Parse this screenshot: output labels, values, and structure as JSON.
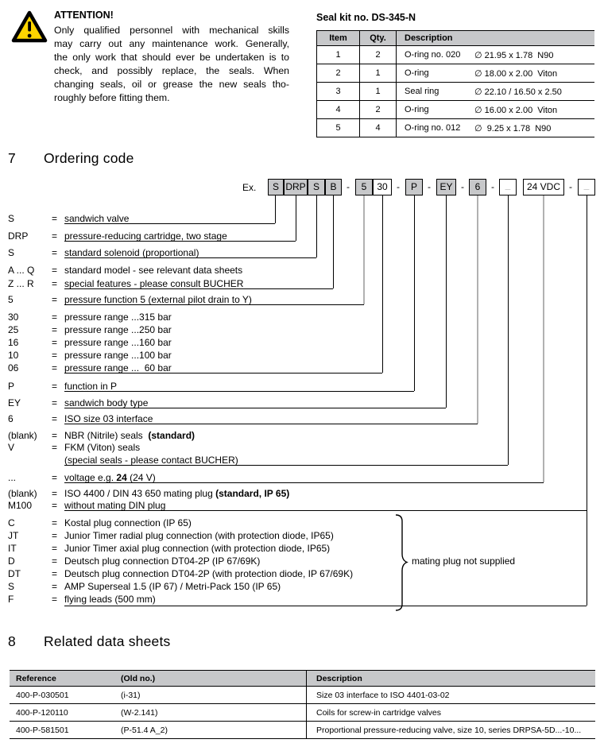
{
  "colors": {
    "table_header_bg": "#c7c8ca",
    "box_gray": "#c7c8ca",
    "leader_gray": "#b1b1b1",
    "warning_yellow": "#ffd500"
  },
  "attention": {
    "title": "ATTENTION!",
    "body_lines": [
      "Only qualified personnel with mechanical skills",
      "may carry out any maintenance work. Generally,",
      "the only work that should ever be undertaken is to",
      "check, and possibly replace, the seals. When",
      "changing seals, oil or grease the new seals tho-",
      "roughly before fitting them."
    ]
  },
  "seal_kit": {
    "title": "Seal kit no. DS-345-N",
    "columns": [
      "Item",
      "Qty.",
      "Description"
    ],
    "rows": [
      {
        "item": "1",
        "qty": "2",
        "name": "O-ring no. 020",
        "size": "∅ 21.95 x 1.78  N90"
      },
      {
        "item": "2",
        "qty": "1",
        "name": "O-ring",
        "size": "∅ 18.00 x 2.00  Viton"
      },
      {
        "item": "3",
        "qty": "1",
        "name": "Seal ring",
        "size": "∅ 22.10 / 16.50 x 2.50"
      },
      {
        "item": "4",
        "qty": "2",
        "name": "O-ring",
        "size": "∅ 16.00 x 2.00  Viton"
      },
      {
        "item": "5",
        "qty": "4",
        "name": "O-ring no. 012",
        "size": "∅  9.25 x 1.78  N90"
      }
    ]
  },
  "section7": {
    "number": "7",
    "title": "Ordering code"
  },
  "ordering": {
    "example_label": "Ex.",
    "separator": "-",
    "equals": "=",
    "boxes": [
      {
        "t": "S",
        "gray": true
      },
      {
        "t": "DRP",
        "gray": true
      },
      {
        "t": "S",
        "gray": true
      },
      {
        "t": "B",
        "gray": true
      },
      {
        "t": "5",
        "gray": true
      },
      {
        "t": "30",
        "gray": false
      },
      {
        "t": "P",
        "gray": true
      },
      {
        "t": "EY",
        "gray": true
      },
      {
        "t": "6",
        "gray": true
      },
      {
        "t": "_",
        "gray": false,
        "ph": true
      },
      {
        "t": "24 VDC",
        "gray": false
      },
      {
        "t": "_",
        "gray": false,
        "ph": true
      }
    ],
    "rows": [
      {
        "label": "S",
        "segs": [
          [
            "sandwich valve",
            0
          ]
        ]
      },
      {
        "label": "DRP",
        "segs": [
          [
            "pressure-reducing cartridge, two stage",
            0
          ]
        ]
      },
      {
        "label": "S",
        "segs": [
          [
            "standard solenoid (proportional)",
            0
          ]
        ]
      },
      {
        "label": "A ... Q",
        "segs": [
          [
            "standard model - see relevant data sheets",
            0
          ]
        ]
      },
      {
        "label": "Z ... R",
        "segs": [
          [
            "special features - please consult BUCHER",
            0
          ]
        ]
      },
      {
        "label": "5",
        "segs": [
          [
            "pressure function 5 (external pilot drain to Y)",
            0
          ]
        ]
      },
      {
        "label": "30",
        "segs": [
          [
            "pressure range ...315 bar",
            0
          ]
        ]
      },
      {
        "label": "25",
        "segs": [
          [
            "pressure range ...250 bar",
            0
          ]
        ]
      },
      {
        "label": "16",
        "segs": [
          [
            "pressure range ...160 bar",
            0
          ]
        ]
      },
      {
        "label": "10",
        "segs": [
          [
            "pressure range ...100 bar",
            0
          ]
        ]
      },
      {
        "label": "06",
        "segs": [
          [
            "pressure range ...  60 bar",
            0
          ]
        ]
      },
      {
        "label": "P",
        "segs": [
          [
            "function in P",
            0
          ]
        ]
      },
      {
        "label": "EY",
        "segs": [
          [
            "sandwich body type",
            0
          ]
        ]
      },
      {
        "label": "6",
        "segs": [
          [
            "ISO size 03 interface",
            0
          ]
        ]
      },
      {
        "label": "(blank)",
        "segs": [
          [
            "NBR (Nitrile) seals  ",
            0
          ],
          [
            "(standard)",
            1
          ]
        ]
      },
      {
        "label": "V",
        "segs": [
          [
            "FKM (Viton) seals",
            0
          ]
        ]
      },
      {
        "label": "",
        "segs": [
          [
            "(special seals - please contact BUCHER)",
            0
          ]
        ]
      },
      {
        "label": "...",
        "segs": [
          [
            "voltage e.g. ",
            0
          ],
          [
            "24",
            1
          ],
          [
            " (24 V)",
            0
          ]
        ]
      },
      {
        "label": "(blank)",
        "segs": [
          [
            "ISO 4400 / DIN 43 650 mating plug ",
            0
          ],
          [
            "(standard, IP 65)",
            1
          ]
        ]
      },
      {
        "label": "M100",
        "segs": [
          [
            "without mating DIN plug",
            0
          ]
        ]
      },
      {
        "label": "C",
        "segs": [
          [
            "Kostal plug connection (IP 65)",
            0
          ]
        ]
      },
      {
        "label": "JT",
        "segs": [
          [
            "Junior Timer radial plug connection (with protection diode, IP65)",
            0
          ]
        ]
      },
      {
        "label": "IT",
        "segs": [
          [
            "Junior Timer axial plug connection (with protection diode, IP65)",
            0
          ]
        ]
      },
      {
        "label": "D",
        "segs": [
          [
            "Deutsch plug connection DT04-2P (IP 67/69K)",
            0
          ]
        ]
      },
      {
        "label": "DT",
        "segs": [
          [
            "Deutsch plug connection DT04-2P (with protection diode, IP 67/69K)",
            0
          ]
        ]
      },
      {
        "label": "S",
        "segs": [
          [
            "AMP Superseal 1.5 (IP 67) / Metri-Pack 150 (IP 65)",
            0
          ]
        ]
      },
      {
        "label": "F",
        "segs": [
          [
            "flying leads (500 mm)",
            0
          ]
        ]
      }
    ],
    "brace_note": "mating plug not supplied"
  },
  "section8": {
    "number": "8",
    "title": "Related data sheets"
  },
  "related": {
    "columns": [
      "Reference",
      "(Old no.)",
      "Description"
    ],
    "rows": [
      {
        "reference": "400-P-030501",
        "old_no": "(i-31)",
        "description": "Size 03 interface to ISO 4401-03-02"
      },
      {
        "reference": "400-P-120110",
        "old_no": "(W-2.141)",
        "description": "Coils for screw-in cartridge valves"
      },
      {
        "reference": "400-P-581501",
        "old_no": "(P-51.4 A_2)",
        "description": "Proportional pressure-reducing valve, size 10, series DRPSA-5D...-10..."
      }
    ]
  }
}
